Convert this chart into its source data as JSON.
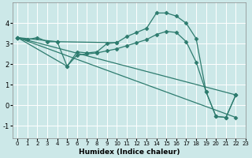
{
  "xlabel": "Humidex (Indice chaleur)",
  "bg_color": "#cce8e8",
  "grid_color": "#ffffff",
  "line_color": "#2d7b6e",
  "xlim": [
    -0.5,
    23
  ],
  "ylim": [
    -1.6,
    5.0
  ],
  "yticks": [
    -1,
    0,
    1,
    2,
    3,
    4
  ],
  "xticks": [
    0,
    1,
    2,
    3,
    4,
    5,
    6,
    7,
    8,
    9,
    10,
    11,
    12,
    13,
    14,
    15,
    16,
    17,
    18,
    19,
    20,
    21,
    22,
    23
  ],
  "line1_x": [
    0,
    1,
    2,
    3,
    4,
    5,
    6,
    7,
    8,
    9,
    10,
    11,
    12,
    13,
    14,
    15,
    16,
    17,
    18,
    19,
    20,
    21,
    22
  ],
  "line1_y": [
    3.3,
    3.2,
    3.3,
    3.1,
    3.1,
    1.9,
    2.6,
    2.55,
    2.6,
    3.0,
    3.05,
    3.35,
    3.55,
    3.75,
    4.5,
    4.5,
    4.35,
    4.0,
    3.25,
    0.65,
    -0.55,
    -0.6,
    0.5
  ],
  "line2_x": [
    0,
    4,
    10
  ],
  "line2_y": [
    3.3,
    3.1,
    3.05
  ],
  "line3_x": [
    0,
    22
  ],
  "line3_y": [
    3.3,
    0.5
  ],
  "line4_x": [
    0,
    22
  ],
  "line4_y": [
    3.3,
    -0.6
  ],
  "line5_x": [
    0,
    5,
    6,
    7,
    8,
    9,
    10,
    11,
    12,
    13,
    14,
    15,
    16,
    17,
    18,
    19,
    20,
    21,
    22
  ],
  "line5_y": [
    3.3,
    1.9,
    2.45,
    2.5,
    2.55,
    2.65,
    2.75,
    2.9,
    3.05,
    3.2,
    3.45,
    3.6,
    3.55,
    3.1,
    2.1,
    0.65,
    -0.55,
    -0.6,
    0.5
  ],
  "marker": "D",
  "markersize": 2.5,
  "linewidth": 0.9
}
